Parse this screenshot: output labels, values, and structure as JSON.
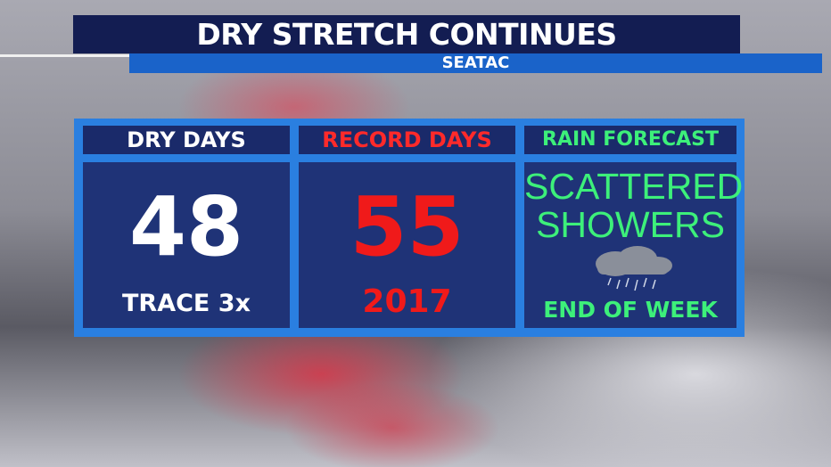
{
  "header": {
    "title": "DRY STRETCH CONTINUES",
    "subtitle": "SEATAC"
  },
  "panels": [
    {
      "heading": "DRY DAYS",
      "main": "48",
      "footer": "TRACE 3x"
    },
    {
      "heading": "RECORD DAYS",
      "main": "55",
      "footer": "2017"
    },
    {
      "heading": "RAIN FORECAST",
      "main": "SCATTERED SHOWERS",
      "footer": "END OF WEEK"
    }
  ]
}
